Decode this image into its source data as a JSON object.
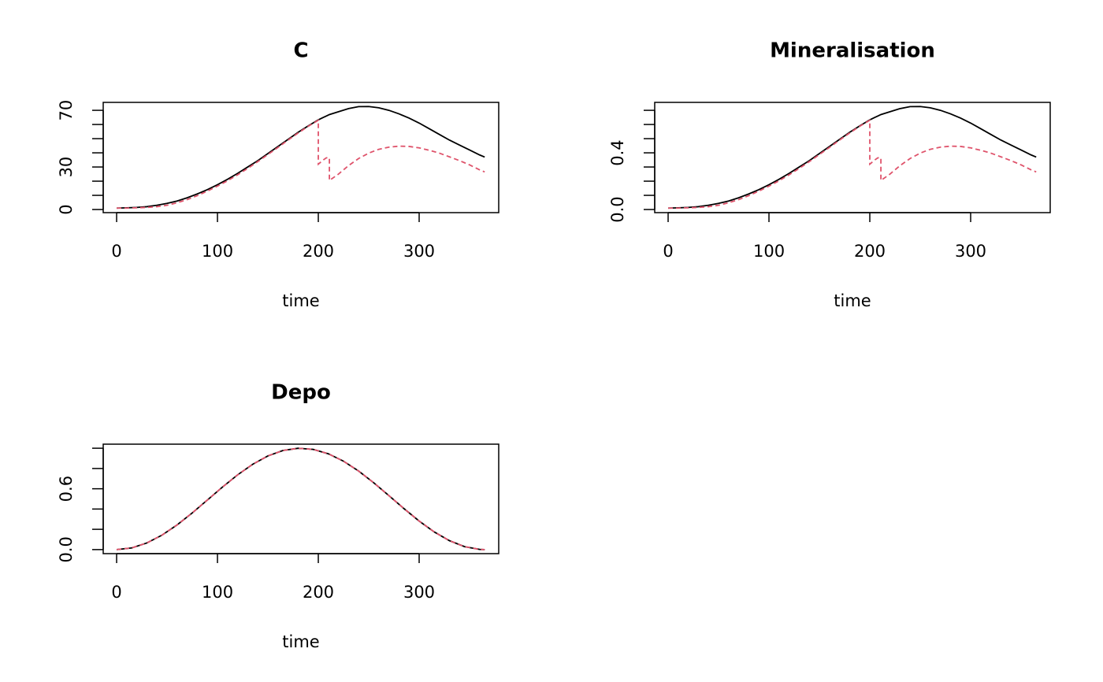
{
  "chart_data": [
    {
      "type": "line",
      "title": "C",
      "xlabel": "time",
      "x": [
        0,
        10,
        20,
        30,
        40,
        50,
        60,
        70,
        80,
        90,
        100,
        110,
        120,
        130,
        140,
        150,
        160,
        170,
        180,
        190,
        200,
        200,
        205,
        208,
        211,
        211,
        220,
        230,
        240,
        250,
        260,
        270,
        280,
        290,
        300,
        310,
        320,
        330,
        340,
        350,
        360,
        365
      ],
      "series": [
        {
          "color": "#000000",
          "dash": false,
          "values": [
            1,
            1.2,
            1.5,
            2,
            3,
            4.3,
            6,
            8.3,
            11,
            14,
            17.5,
            21.3,
            25.5,
            30,
            34.5,
            39.5,
            44.5,
            49.5,
            54.5,
            59,
            63.3,
            63.3,
            65,
            66,
            67,
            67,
            69,
            71.2,
            72.6,
            72.7,
            71.8,
            70,
            67.5,
            64.5,
            61,
            57,
            53,
            49,
            45.5,
            42,
            38.5,
            37
          ]
        },
        {
          "color": "#DF536B",
          "dash": true,
          "values": [
            1,
            1,
            1.2,
            1.5,
            2,
            3,
            4.8,
            7,
            9.8,
            13,
            16.5,
            20.3,
            24.5,
            29,
            33.8,
            38.8,
            43.8,
            49,
            54,
            58.7,
            63,
            32,
            35,
            36.5,
            36.5,
            20.5,
            25,
            31,
            36,
            39.8,
            42.5,
            44,
            44.7,
            44.5,
            43.5,
            41.8,
            39.8,
            37.2,
            34.5,
            31.5,
            28,
            26.5
          ]
        }
      ],
      "xlim": [
        -13.3,
        378.9
      ],
      "ylim": [
        -2.2,
        75.6
      ],
      "xticks": [
        0,
        100,
        200,
        300
      ],
      "yticks": [
        0,
        30,
        70
      ],
      "yminor": [
        10,
        20,
        40,
        50,
        60
      ]
    },
    {
      "type": "line",
      "title": "Mineralisation",
      "xlabel": "time",
      "x": [
        0,
        10,
        20,
        30,
        40,
        50,
        60,
        70,
        80,
        90,
        100,
        110,
        120,
        130,
        140,
        150,
        160,
        170,
        180,
        190,
        200,
        200,
        205,
        208,
        211,
        211,
        220,
        230,
        240,
        250,
        260,
        270,
        280,
        290,
        300,
        310,
        320,
        330,
        340,
        350,
        360,
        365
      ],
      "series": [
        {
          "color": "#000000",
          "dash": false,
          "values": [
            0.01,
            0.012,
            0.015,
            0.02,
            0.03,
            0.043,
            0.06,
            0.083,
            0.11,
            0.14,
            0.175,
            0.213,
            0.255,
            0.3,
            0.345,
            0.395,
            0.445,
            0.495,
            0.545,
            0.59,
            0.633,
            0.633,
            0.65,
            0.66,
            0.67,
            0.67,
            0.69,
            0.712,
            0.726,
            0.727,
            0.718,
            0.7,
            0.675,
            0.645,
            0.61,
            0.57,
            0.53,
            0.49,
            0.455,
            0.42,
            0.385,
            0.37
          ]
        },
        {
          "color": "#DF536B",
          "dash": true,
          "values": [
            0.01,
            0.01,
            0.012,
            0.015,
            0.02,
            0.03,
            0.048,
            0.07,
            0.098,
            0.13,
            0.165,
            0.203,
            0.245,
            0.29,
            0.338,
            0.388,
            0.438,
            0.49,
            0.54,
            0.587,
            0.63,
            0.32,
            0.35,
            0.365,
            0.365,
            0.205,
            0.25,
            0.31,
            0.36,
            0.398,
            0.425,
            0.44,
            0.447,
            0.445,
            0.435,
            0.418,
            0.398,
            0.372,
            0.345,
            0.315,
            0.28,
            0.265
          ]
        }
      ],
      "xlim": [
        -13.3,
        378.9
      ],
      "ylim": [
        -0.022,
        0.756
      ],
      "xticks": [
        0,
        100,
        200,
        300
      ],
      "yticks": [
        {
          "value": 0,
          "label": "0.0"
        },
        {
          "value": 0.4,
          "label": "0.4"
        }
      ],
      "yminor": [
        0.1,
        0.2,
        0.3,
        0.5,
        0.6,
        0.7
      ]
    },
    {
      "type": "line",
      "title": "Depo",
      "xlabel": "time",
      "x": [
        0,
        15,
        30,
        45,
        60,
        75,
        90,
        105,
        120,
        135,
        150,
        165,
        180,
        195,
        210,
        225,
        240,
        255,
        270,
        285,
        300,
        315,
        330,
        345,
        360,
        365
      ],
      "series": [
        {
          "color": "#000000",
          "dash": false,
          "values": [
            0,
            0.0166,
            0.0652,
            0.1426,
            0.2438,
            0.3619,
            0.4893,
            0.6172,
            0.7375,
            0.8419,
            0.9238,
            0.9775,
            0.9995,
            0.9885,
            0.945,
            0.8722,
            0.7745,
            0.6586,
            0.5323,
            0.4038,
            0.2817,
            0.1741,
            0.0881,
            0.0293,
            0.0019,
            0
          ]
        },
        {
          "color": "#DF536B",
          "dash": true,
          "values": [
            0,
            0.0166,
            0.0652,
            0.1426,
            0.2438,
            0.3619,
            0.4893,
            0.6172,
            0.7375,
            0.8419,
            0.9238,
            0.9775,
            0.9995,
            0.9885,
            0.945,
            0.8722,
            0.7745,
            0.6586,
            0.5323,
            0.4038,
            0.2817,
            0.1741,
            0.0881,
            0.0293,
            0.0019,
            0
          ]
        }
      ],
      "xlim": [
        -13.3,
        378.9
      ],
      "ylim": [
        -0.04,
        1.04
      ],
      "xticks": [
        0,
        100,
        200,
        300
      ],
      "yticks": [
        {
          "value": 0,
          "label": "0.0"
        },
        {
          "value": 0.6,
          "label": "0.6"
        }
      ],
      "yminor": [
        0.2,
        0.4,
        0.8,
        1.0
      ]
    }
  ]
}
